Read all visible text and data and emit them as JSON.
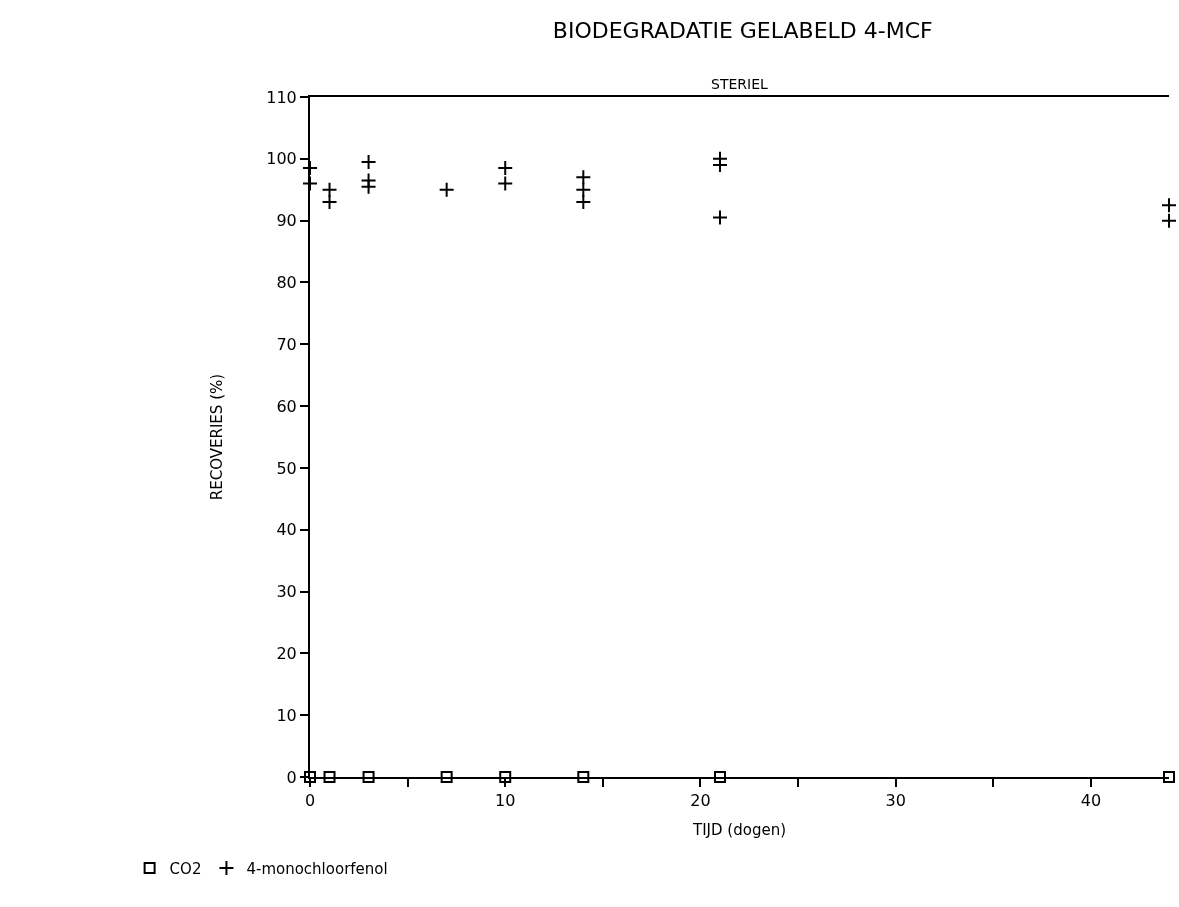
{
  "chart_data": {
    "type": "scatter",
    "title": "BIODEGRADATIE GELABELD 4-MCF",
    "subtitle": "STERIEL",
    "xlabel": "TIJD (dogen)",
    "ylabel": "RECOVERIES (%)",
    "xlim": [
      0,
      44
    ],
    "xticks": [
      0,
      {
        "value": 5,
        "label": null
      },
      10,
      {
        "value": 15,
        "label": null
      },
      20,
      {
        "value": 25,
        "label": null
      },
      30,
      {
        "value": 35,
        "label": null
      },
      40
    ],
    "ylim": [
      0,
      110
    ],
    "yticks": [
      0,
      10,
      20,
      30,
      40,
      50,
      60,
      70,
      80,
      90,
      100,
      110
    ],
    "legend": "bottom left",
    "series": [
      {
        "name": "CO2",
        "color": "#000000",
        "marker": "square",
        "x": [
          0,
          1,
          3,
          7,
          10,
          14,
          21,
          44
        ],
        "values": [
          0,
          0,
          0,
          0,
          0,
          0,
          0,
          0
        ]
      },
      {
        "name": "4-monochloorfenol",
        "color": "#000000",
        "marker": "cross",
        "x": [
          0,
          0,
          1,
          1,
          3,
          3,
          3,
          7,
          10,
          10,
          14,
          14,
          14,
          21,
          21,
          21,
          44,
          44
        ],
        "values": [
          98.5,
          96,
          95,
          93,
          99.5,
          96.5,
          95.5,
          95,
          98.5,
          96,
          97,
          95,
          93,
          100,
          99,
          90.5,
          92.5,
          90
        ]
      }
    ]
  }
}
